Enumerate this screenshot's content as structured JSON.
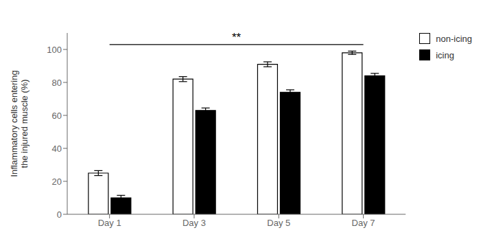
{
  "chart_data": {
    "type": "bar",
    "categories": [
      "Day 1",
      "Day 3",
      "Day 5",
      "Day 7"
    ],
    "series": [
      {
        "name": "non-icing",
        "color": "#ffffff",
        "values": [
          25,
          82,
          91,
          98
        ],
        "errors": [
          1.5,
          1.5,
          1.5,
          1.0
        ]
      },
      {
        "name": "icing",
        "color": "#000000",
        "values": [
          10,
          63,
          74,
          84
        ],
        "errors": [
          1.5,
          1.5,
          1.5,
          1.5
        ]
      }
    ],
    "ylabel": "Inflammatory cells entering\nthe injured muscle (%)",
    "ylim": [
      0,
      110
    ],
    "yticks": [
      0,
      20,
      40,
      60,
      80,
      100
    ],
    "annotations": [
      {
        "text": "**",
        "y": 103
      }
    ],
    "legend": "upper right",
    "grid": false
  }
}
